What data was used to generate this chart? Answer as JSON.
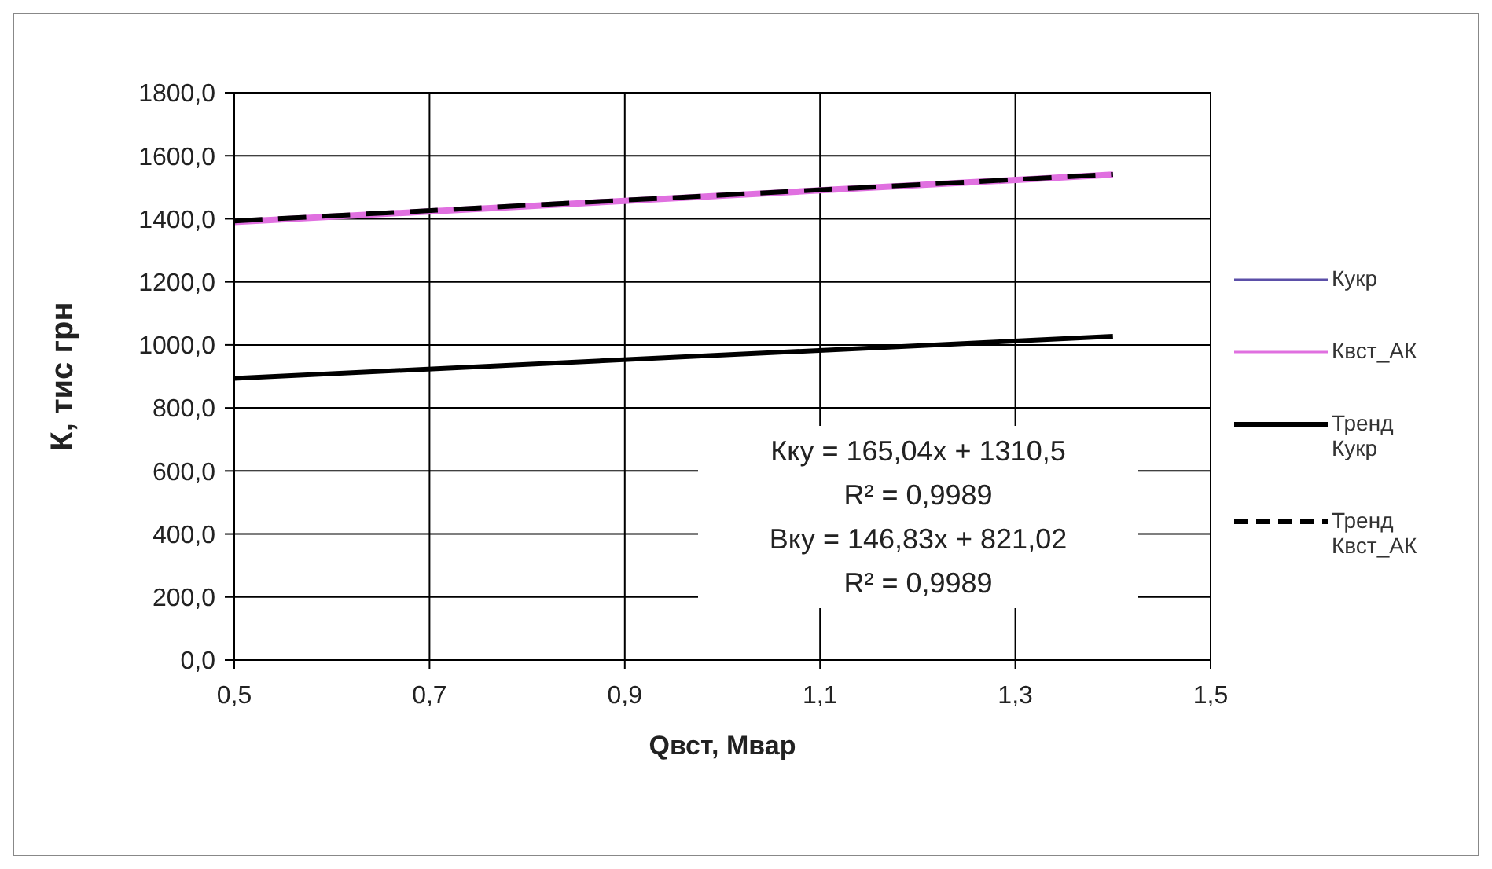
{
  "chart_data": {
    "type": "line",
    "xlabel": "Qвст, Мвар",
    "ylabel": "К, тис грн",
    "xlim": [
      0.5,
      1.5
    ],
    "xticks": [
      {
        "value": 0.5,
        "label": "0,5"
      },
      {
        "value": 0.7,
        "label": "0,7"
      },
      {
        "value": 0.9,
        "label": "0,9"
      },
      {
        "value": 1.1,
        "label": "1,1"
      },
      {
        "value": 1.3,
        "label": "1,3"
      },
      {
        "value": 1.5,
        "label": "1,5"
      }
    ],
    "ylim": [
      0,
      1800
    ],
    "yticks": [
      {
        "value": 0,
        "label": "0,0"
      },
      {
        "value": 200,
        "label": "200,0"
      },
      {
        "value": 400,
        "label": "400,0"
      },
      {
        "value": 600,
        "label": "600,0"
      },
      {
        "value": 800,
        "label": "800,0"
      },
      {
        "value": 1000,
        "label": "1000,0"
      },
      {
        "value": 1200,
        "label": "1200,0"
      },
      {
        "value": 1400,
        "label": "1400,0"
      },
      {
        "value": 1600,
        "label": "1600,0"
      },
      {
        "value": 1800,
        "label": "1800,0"
      }
    ],
    "grid": true,
    "legend": "right",
    "marker": "none",
    "series": [
      {
        "name": "Кукр",
        "color": "#5b4fa8",
        "line_style": "solid"
      },
      {
        "name": "Квст_АК",
        "color": "#e070e0",
        "x": [
          0.5,
          0.8,
          1.1,
          1.4
        ],
        "values": [
          1390,
          1440,
          1490,
          1540
        ]
      },
      {
        "name": "Тренд Кукр",
        "color": "#000000",
        "line_style": "solid",
        "x": [
          0.5,
          1.4
        ],
        "values": [
          894,
          1027
        ]
      },
      {
        "name": "Тренд Квст_АК",
        "color": "#000000",
        "line_style": "dashed",
        "x": [
          0.5,
          1.4
        ],
        "values": [
          1393,
          1541
        ]
      }
    ],
    "annotations": [
      "Кку = 165,04x + 1310,5",
      "R² = 0,9989",
      "Вку = 146,83x + 821,02",
      "R² = 0,9989"
    ]
  }
}
